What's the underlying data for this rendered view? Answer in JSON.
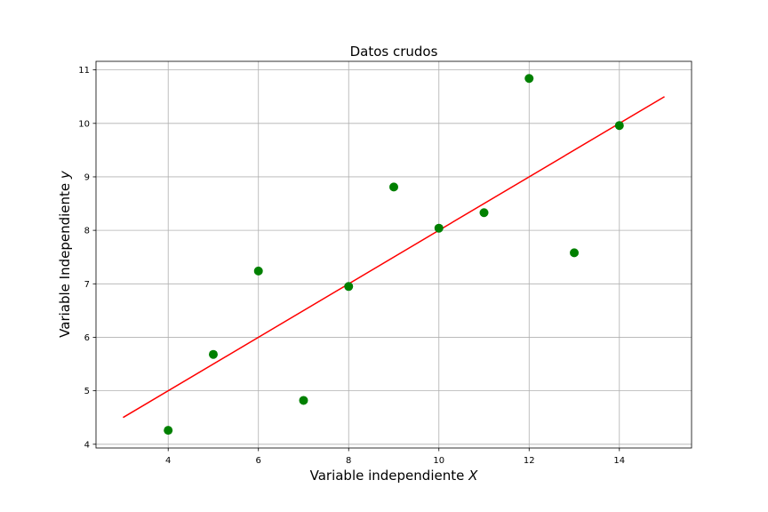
{
  "chart_data": {
    "type": "scatter",
    "title": "Datos crudos",
    "xlabel": {
      "text": "Variable independiente",
      "var": "X"
    },
    "ylabel": {
      "text": "Variable Independiente",
      "var": "y"
    },
    "xlim": [
      2.4,
      15.6
    ],
    "ylim": [
      3.93,
      11.16
    ],
    "xticks": [
      4,
      6,
      8,
      10,
      12,
      14
    ],
    "yticks": [
      4,
      5,
      6,
      7,
      8,
      9,
      10,
      11
    ],
    "grid": true,
    "series": [
      {
        "type": "scatter",
        "color": "#008000",
        "x": [
          4,
          5,
          6,
          7,
          8,
          9,
          10,
          11,
          12,
          13,
          14
        ],
        "y": [
          4.26,
          5.68,
          7.24,
          4.82,
          6.95,
          8.81,
          8.04,
          8.33,
          10.84,
          7.58,
          9.96
        ]
      },
      {
        "type": "line",
        "color": "#ff0000",
        "x": [
          3,
          15
        ],
        "y": [
          4.5,
          10.5
        ]
      }
    ]
  }
}
